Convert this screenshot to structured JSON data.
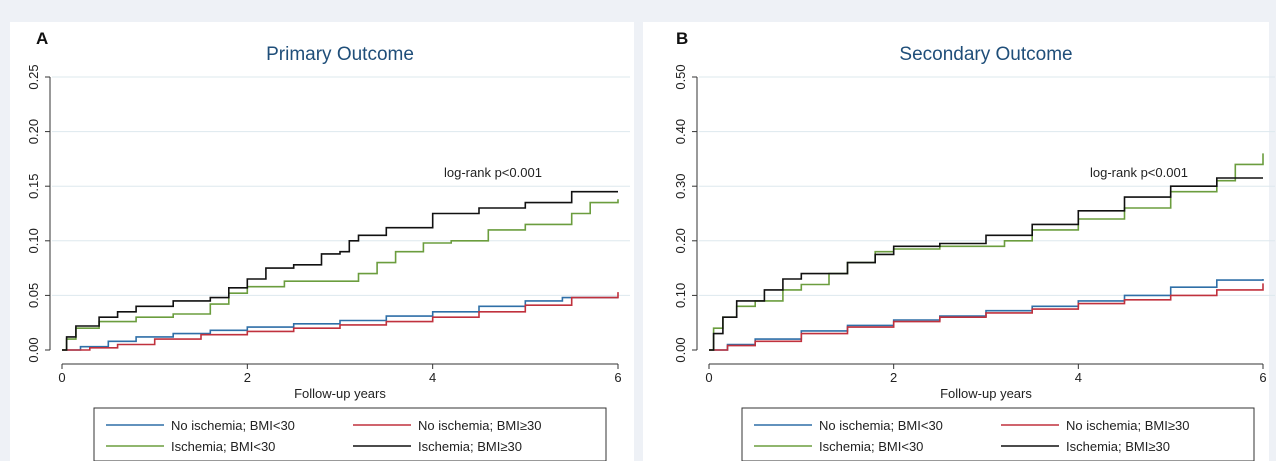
{
  "chart_data": [
    {
      "type": "line",
      "panel": "A",
      "title": "Primary Outcome",
      "xlabel": "Follow-up years",
      "ylabel": "",
      "xlim": [
        0,
        6
      ],
      "ylim": [
        0,
        0.25
      ],
      "x_ticks": [
        "0",
        "2",
        "4",
        "6"
      ],
      "y_ticks": [
        "0.00",
        "0.05",
        "0.10",
        "0.15",
        "0.20",
        "0.25"
      ],
      "grid": true,
      "annotation": "log-rank p<0.001",
      "legend_position": "bottom",
      "series": [
        {
          "name": "No ischemia; BMI<30",
          "color": "#2f6fa7",
          "points": [
            [
              0,
              0
            ],
            [
              0.2,
              0.003
            ],
            [
              0.5,
              0.008
            ],
            [
              0.8,
              0.012
            ],
            [
              1.2,
              0.015
            ],
            [
              1.6,
              0.018
            ],
            [
              2.0,
              0.021
            ],
            [
              2.5,
              0.024
            ],
            [
              3.0,
              0.027
            ],
            [
              3.5,
              0.031
            ],
            [
              4.0,
              0.035
            ],
            [
              4.5,
              0.04
            ],
            [
              5.0,
              0.045
            ],
            [
              5.4,
              0.048
            ],
            [
              6.0,
              0.048
            ]
          ]
        },
        {
          "name": "No ischemia; BMI≥30",
          "color": "#c0313d",
          "points": [
            [
              0,
              0
            ],
            [
              0.3,
              0.002
            ],
            [
              0.6,
              0.005
            ],
            [
              1.0,
              0.01
            ],
            [
              1.5,
              0.014
            ],
            [
              2.0,
              0.017
            ],
            [
              2.5,
              0.02
            ],
            [
              3.0,
              0.023
            ],
            [
              3.5,
              0.026
            ],
            [
              4.0,
              0.03
            ],
            [
              4.5,
              0.035
            ],
            [
              5.0,
              0.041
            ],
            [
              5.5,
              0.048
            ],
            [
              6.0,
              0.053
            ]
          ]
        },
        {
          "name": "Ischemia; BMI<30",
          "color": "#6b9d3e",
          "points": [
            [
              0,
              0
            ],
            [
              0.05,
              0.01
            ],
            [
              0.15,
              0.02
            ],
            [
              0.4,
              0.026
            ],
            [
              0.8,
              0.03
            ],
            [
              1.2,
              0.033
            ],
            [
              1.6,
              0.042
            ],
            [
              1.8,
              0.052
            ],
            [
              2.0,
              0.058
            ],
            [
              2.4,
              0.063
            ],
            [
              3.0,
              0.063
            ],
            [
              3.2,
              0.07
            ],
            [
              3.4,
              0.08
            ],
            [
              3.6,
              0.09
            ],
            [
              3.9,
              0.098
            ],
            [
              4.2,
              0.1
            ],
            [
              4.6,
              0.11
            ],
            [
              5.0,
              0.115
            ],
            [
              5.5,
              0.125
            ],
            [
              5.7,
              0.135
            ],
            [
              6.0,
              0.138
            ]
          ]
        },
        {
          "name": "Ischemia; BMI≥30",
          "color": "#111111",
          "points": [
            [
              0,
              0
            ],
            [
              0.05,
              0.012
            ],
            [
              0.15,
              0.022
            ],
            [
              0.4,
              0.03
            ],
            [
              0.6,
              0.035
            ],
            [
              0.8,
              0.04
            ],
            [
              1.2,
              0.045
            ],
            [
              1.6,
              0.048
            ],
            [
              1.8,
              0.057
            ],
            [
              2.0,
              0.065
            ],
            [
              2.2,
              0.075
            ],
            [
              2.5,
              0.078
            ],
            [
              2.8,
              0.088
            ],
            [
              3.0,
              0.09
            ],
            [
              3.1,
              0.1
            ],
            [
              3.2,
              0.105
            ],
            [
              3.5,
              0.112
            ],
            [
              4.0,
              0.125
            ],
            [
              4.5,
              0.13
            ],
            [
              5.0,
              0.135
            ],
            [
              5.5,
              0.145
            ],
            [
              6.0,
              0.145
            ]
          ]
        }
      ]
    },
    {
      "type": "line",
      "panel": "B",
      "title": "Secondary Outcome",
      "xlabel": "Follow-up years",
      "ylabel": "",
      "xlim": [
        0,
        6
      ],
      "ylim": [
        0,
        0.5
      ],
      "x_ticks": [
        "0",
        "2",
        "4",
        "6"
      ],
      "y_ticks": [
        "0.00",
        "0.10",
        "0.20",
        "0.30",
        "0.40",
        "0.50"
      ],
      "grid": true,
      "annotation": "log-rank p<0.001",
      "legend_position": "bottom",
      "series": [
        {
          "name": "No ischemia; BMI<30",
          "color": "#2f6fa7",
          "points": [
            [
              0,
              0
            ],
            [
              0.2,
              0.01
            ],
            [
              0.5,
              0.02
            ],
            [
              1.0,
              0.035
            ],
            [
              1.5,
              0.045
            ],
            [
              2.0,
              0.055
            ],
            [
              2.5,
              0.062
            ],
            [
              3.0,
              0.072
            ],
            [
              3.5,
              0.08
            ],
            [
              4.0,
              0.09
            ],
            [
              4.5,
              0.1
            ],
            [
              5.0,
              0.115
            ],
            [
              5.5,
              0.128
            ],
            [
              6.0,
              0.13
            ]
          ]
        },
        {
          "name": "No ischemia; BMI≥30",
          "color": "#c0313d",
          "points": [
            [
              0,
              0
            ],
            [
              0.2,
              0.008
            ],
            [
              0.5,
              0.016
            ],
            [
              1.0,
              0.03
            ],
            [
              1.5,
              0.042
            ],
            [
              2.0,
              0.052
            ],
            [
              2.5,
              0.06
            ],
            [
              3.0,
              0.068
            ],
            [
              3.5,
              0.075
            ],
            [
              4.0,
              0.085
            ],
            [
              4.5,
              0.092
            ],
            [
              5.0,
              0.1
            ],
            [
              5.5,
              0.11
            ],
            [
              6.0,
              0.122
            ]
          ]
        },
        {
          "name": "Ischemia; BMI<30",
          "color": "#6b9d3e",
          "points": [
            [
              0,
              0
            ],
            [
              0.05,
              0.04
            ],
            [
              0.15,
              0.06
            ],
            [
              0.3,
              0.08
            ],
            [
              0.5,
              0.09
            ],
            [
              0.8,
              0.11
            ],
            [
              1.0,
              0.12
            ],
            [
              1.3,
              0.14
            ],
            [
              1.5,
              0.16
            ],
            [
              1.8,
              0.18
            ],
            [
              2.0,
              0.185
            ],
            [
              2.5,
              0.19
            ],
            [
              3.0,
              0.19
            ],
            [
              3.2,
              0.2
            ],
            [
              3.5,
              0.22
            ],
            [
              4.0,
              0.24
            ],
            [
              4.5,
              0.26
            ],
            [
              5.0,
              0.29
            ],
            [
              5.5,
              0.31
            ],
            [
              5.7,
              0.34
            ],
            [
              6.0,
              0.36
            ]
          ]
        },
        {
          "name": "Ischemia; BMI≥30",
          "color": "#111111",
          "points": [
            [
              0,
              0
            ],
            [
              0.05,
              0.03
            ],
            [
              0.15,
              0.06
            ],
            [
              0.3,
              0.09
            ],
            [
              0.6,
              0.11
            ],
            [
              0.8,
              0.13
            ],
            [
              1.0,
              0.14
            ],
            [
              1.5,
              0.16
            ],
            [
              1.8,
              0.175
            ],
            [
              2.0,
              0.19
            ],
            [
              2.5,
              0.195
            ],
            [
              3.0,
              0.21
            ],
            [
              3.5,
              0.23
            ],
            [
              4.0,
              0.255
            ],
            [
              4.5,
              0.28
            ],
            [
              5.0,
              0.3
            ],
            [
              5.5,
              0.315
            ],
            [
              6.0,
              0.315
            ]
          ]
        }
      ]
    }
  ]
}
